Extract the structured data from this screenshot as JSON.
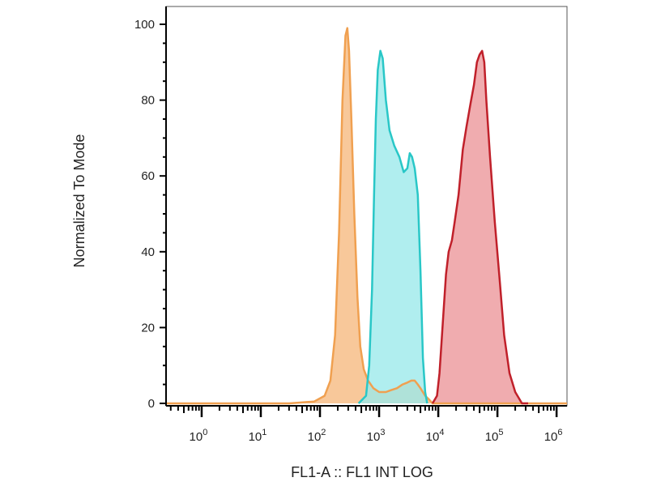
{
  "chart_data": {
    "type": "area",
    "title": "",
    "xlabel": "FL1-A :: FL1 INT LOG",
    "ylabel": "Normalized To Mode",
    "xscale": "log",
    "xlim": [
      0.25,
      1500000
    ],
    "ylim": [
      0,
      100
    ],
    "grid": false,
    "legend": "none",
    "x_ticks": [
      {
        "value": 1,
        "base": "10",
        "exp": "0"
      },
      {
        "value": 10,
        "base": "10",
        "exp": "1"
      },
      {
        "value": 100,
        "base": "10",
        "exp": "2"
      },
      {
        "value": 1000,
        "base": "10",
        "exp": "3"
      },
      {
        "value": 10000,
        "base": "10",
        "exp": "4"
      },
      {
        "value": 100000,
        "base": "10",
        "exp": "5"
      },
      {
        "value": 1000000,
        "base": "10",
        "exp": "6"
      }
    ],
    "y_ticks": [
      0,
      20,
      40,
      60,
      80,
      100
    ],
    "series": [
      {
        "color": "#f0a050",
        "fill": "#f8c89a",
        "points": [
          [
            0.25,
            0
          ],
          [
            30,
            0
          ],
          [
            80,
            0.5
          ],
          [
            120,
            2
          ],
          [
            150,
            6
          ],
          [
            180,
            18
          ],
          [
            210,
            45
          ],
          [
            240,
            80
          ],
          [
            270,
            97
          ],
          [
            290,
            99
          ],
          [
            310,
            93
          ],
          [
            340,
            75
          ],
          [
            380,
            50
          ],
          [
            430,
            28
          ],
          [
            480,
            15
          ],
          [
            550,
            9
          ],
          [
            650,
            6
          ],
          [
            800,
            4
          ],
          [
            1000,
            3
          ],
          [
            1300,
            3
          ],
          [
            1600,
            3.5
          ],
          [
            2000,
            4
          ],
          [
            2500,
            5
          ],
          [
            3000,
            5.5
          ],
          [
            3500,
            6
          ],
          [
            4000,
            6
          ],
          [
            4500,
            5
          ],
          [
            5000,
            4
          ],
          [
            6000,
            2
          ],
          [
            7000,
            1
          ],
          [
            8000,
            0
          ],
          [
            1500000,
            0
          ]
        ]
      },
      {
        "color": "#29c7c7",
        "fill": "#9ae9ea",
        "points": [
          [
            450,
            0
          ],
          [
            600,
            2
          ],
          [
            680,
            10
          ],
          [
            760,
            30
          ],
          [
            820,
            55
          ],
          [
            880,
            75
          ],
          [
            950,
            88
          ],
          [
            1050,
            93
          ],
          [
            1150,
            91
          ],
          [
            1300,
            80
          ],
          [
            1500,
            72
          ],
          [
            1800,
            68
          ],
          [
            2200,
            65
          ],
          [
            2600,
            61
          ],
          [
            3000,
            62
          ],
          [
            3300,
            66
          ],
          [
            3600,
            65
          ],
          [
            4000,
            62
          ],
          [
            4500,
            55
          ],
          [
            5000,
            35
          ],
          [
            5500,
            12
          ],
          [
            6000,
            3
          ],
          [
            6500,
            0
          ]
        ]
      },
      {
        "color": "#c0202a",
        "fill": "#ec9598",
        "points": [
          [
            8000,
            0
          ],
          [
            9500,
            2
          ],
          [
            10500,
            8
          ],
          [
            12000,
            22
          ],
          [
            13500,
            34
          ],
          [
            15000,
            40
          ],
          [
            17000,
            43
          ],
          [
            19000,
            48
          ],
          [
            22000,
            55
          ],
          [
            26000,
            67
          ],
          [
            30000,
            73
          ],
          [
            35000,
            79
          ],
          [
            40000,
            84
          ],
          [
            45000,
            90
          ],
          [
            50000,
            92
          ],
          [
            55000,
            93
          ],
          [
            60000,
            90
          ],
          [
            65000,
            80
          ],
          [
            75000,
            65
          ],
          [
            90000,
            48
          ],
          [
            110000,
            32
          ],
          [
            130000,
            18
          ],
          [
            160000,
            8
          ],
          [
            200000,
            3
          ],
          [
            260000,
            0
          ],
          [
            330000,
            0
          ]
        ]
      }
    ]
  }
}
